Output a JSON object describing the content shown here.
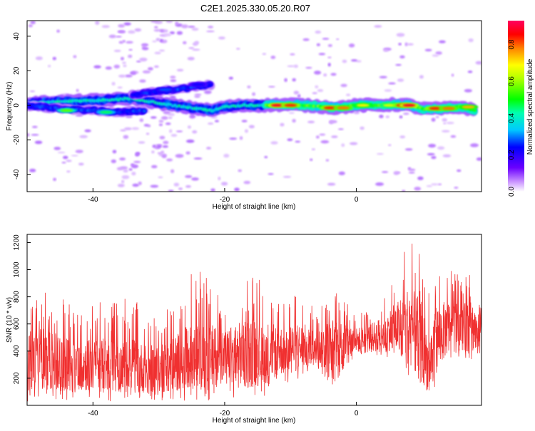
{
  "title": "C2E1.2025.330.05.20.R07",
  "colors": {
    "snr_line": "#f03030",
    "frame": "#000000"
  },
  "chart_data": [
    {
      "type": "heatmap",
      "title": "C2E1.2025.330.05.20.R07",
      "xlabel": "Height of straight line (km)",
      "ylabel": "Frequency (Hz)",
      "xlim": [
        -50,
        19
      ],
      "ylim": [
        -50,
        49
      ],
      "xticks": [
        -40,
        -20,
        0
      ],
      "yticks": [
        -40,
        -20,
        0,
        20,
        40
      ],
      "colorbar": {
        "label": "Normalized spectral amplitude",
        "range": [
          0,
          0.93
        ],
        "ticks": [
          "0.0",
          "0.2",
          "0.4",
          "0.6",
          "0.8"
        ],
        "tick_values": [
          0,
          0.2,
          0.4,
          0.6,
          0.8
        ],
        "colormap": "rainbow (white-purple-blue-cyan-green-yellow-orange-red-magenta)"
      },
      "ridges": [
        {
          "points": [
            [
              -50,
              1
            ],
            [
              -46,
              2
            ],
            [
              -42,
              2.5
            ],
            [
              -38,
              3
            ],
            [
              -34,
              4
            ],
            [
              -31,
              2
            ],
            [
              -28,
              0
            ],
            [
              -24,
              -2
            ],
            [
              -22,
              -3
            ],
            [
              -20,
              -1
            ],
            [
              -17,
              0
            ],
            [
              -14,
              0
            ],
            [
              -10,
              0.5
            ],
            [
              -6,
              -0.5
            ],
            [
              -3,
              -1.5
            ],
            [
              0,
              0
            ],
            [
              3,
              0
            ],
            [
              6,
              0.5
            ],
            [
              8,
              0
            ],
            [
              10,
              -2
            ],
            [
              13,
              -2
            ],
            [
              16,
              -1
            ],
            [
              18,
              -3
            ]
          ],
          "peaks": [
            [
              -12,
              0,
              0.95
            ],
            [
              -10,
              0,
              0.9
            ],
            [
              -4,
              -1.5,
              0.9
            ],
            [
              -2,
              -1.5,
              0.85
            ],
            [
              1,
              0,
              0.75
            ],
            [
              5,
              0,
              0.7
            ],
            [
              7,
              0,
              0.9
            ],
            [
              8,
              0,
              0.95
            ],
            [
              12,
              -1.8,
              0.9
            ],
            [
              14,
              -1.8,
              0.85
            ],
            [
              17,
              -1,
              0.8
            ]
          ]
        },
        {
          "points": [
            [
              -50,
              0
            ],
            [
              -45,
              -2
            ],
            [
              -40,
              -3
            ],
            [
              -36,
              -4
            ],
            [
              -32,
              -3
            ]
          ],
          "peaks": [
            [
              -44,
              -3,
              0.6
            ],
            [
              -38,
              -4,
              0.5
            ]
          ]
        },
        {
          "points": [
            [
              -34,
              6
            ],
            [
              -30,
              8
            ],
            [
              -26,
              10
            ],
            [
              -22,
              12
            ]
          ],
          "peaks": [
            [
              -29,
              9,
              0.3
            ],
            [
              -24,
              12,
              0.25
            ]
          ]
        }
      ]
    },
    {
      "type": "line",
      "xlabel": "Height of straight line (km)",
      "ylabel": "SNR (10 * v/v)",
      "xlim": [
        -50,
        19
      ],
      "ylim": [
        0,
        1260
      ],
      "xticks": [
        -40,
        -20,
        0
      ],
      "yticks": [
        200,
        400,
        600,
        800,
        1000,
        1200
      ],
      "envelope": {
        "x": [
          -50,
          -48,
          -46,
          -44,
          -42,
          -40,
          -38,
          -36,
          -34,
          -32,
          -30,
          -28,
          -26,
          -24,
          -22,
          -20,
          -18,
          -16,
          -14,
          -12,
          -10,
          -8,
          -6,
          -4,
          -2,
          0,
          2,
          4,
          6,
          8,
          10,
          11,
          12,
          14,
          16,
          18,
          19
        ],
        "baseline": [
          300,
          330,
          300,
          280,
          290,
          270,
          280,
          260,
          280,
          250,
          250,
          280,
          320,
          330,
          330,
          350,
          340,
          360,
          370,
          380,
          400,
          420,
          420,
          400,
          450,
          470,
          480,
          520,
          560,
          560,
          420,
          260,
          460,
          560,
          560,
          560,
          560
        ],
        "peak": [
          850,
          860,
          800,
          820,
          780,
          760,
          760,
          800,
          780,
          720,
          640,
          760,
          950,
          1030,
          900,
          780,
          900,
          960,
          920,
          800,
          830,
          800,
          700,
          900,
          820,
          680,
          720,
          820,
          960,
          1240,
          1120,
          900,
          1050,
          1000,
          950,
          1000,
          920
        ]
      }
    }
  ]
}
